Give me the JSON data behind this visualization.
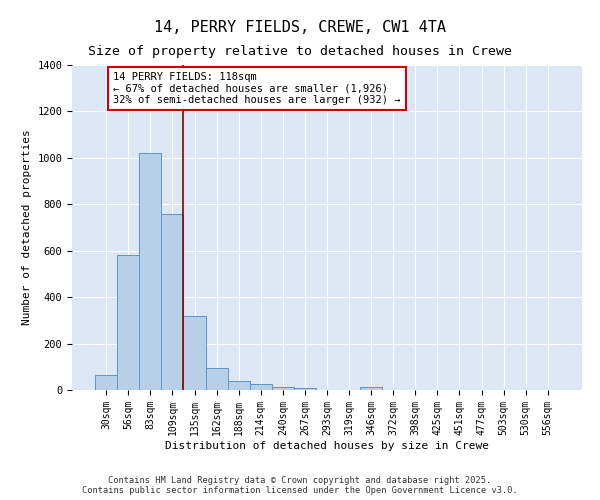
{
  "title": "14, PERRY FIELDS, CREWE, CW1 4TA",
  "subtitle": "Size of property relative to detached houses in Crewe",
  "xlabel": "Distribution of detached houses by size in Crewe",
  "ylabel": "Number of detached properties",
  "categories": [
    "30sqm",
    "56sqm",
    "83sqm",
    "109sqm",
    "135sqm",
    "162sqm",
    "188sqm",
    "214sqm",
    "240sqm",
    "267sqm",
    "293sqm",
    "319sqm",
    "346sqm",
    "372sqm",
    "398sqm",
    "425sqm",
    "451sqm",
    "477sqm",
    "503sqm",
    "530sqm",
    "556sqm"
  ],
  "values": [
    65,
    580,
    1020,
    760,
    320,
    95,
    40,
    25,
    15,
    10,
    0,
    0,
    15,
    0,
    0,
    0,
    0,
    0,
    0,
    0,
    0
  ],
  "bar_color": "#b8cfe8",
  "bar_edge_color": "#5a96cc",
  "bg_color": "#dce6f5",
  "grid_color": "#ffffff",
  "vline_color": "#8b0000",
  "annotation_text": "14 PERRY FIELDS: 118sqm\n← 67% of detached houses are smaller (1,926)\n32% of semi-detached houses are larger (932) →",
  "annotation_box_color": "white",
  "annotation_box_edge": "#cc0000",
  "ylim": [
    0,
    1400
  ],
  "yticks": [
    0,
    200,
    400,
    600,
    800,
    1000,
    1200,
    1400
  ],
  "footer": "Contains HM Land Registry data © Crown copyright and database right 2025.\nContains public sector information licensed under the Open Government Licence v3.0.",
  "title_fontsize": 11,
  "subtitle_fontsize": 9.5,
  "tick_fontsize": 7,
  "ylabel_fontsize": 8,
  "xlabel_fontsize": 8,
  "vline_x": 3.5
}
